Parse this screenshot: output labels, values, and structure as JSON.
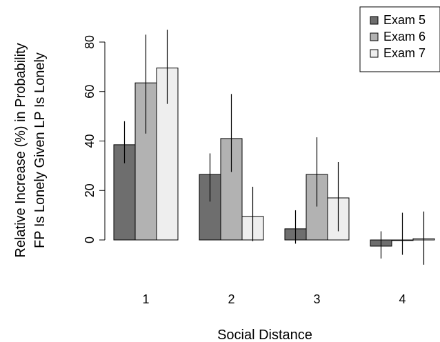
{
  "chart_data": {
    "type": "bar",
    "categories": [
      "1",
      "2",
      "3",
      "4"
    ],
    "series": [
      {
        "name": "Exam 5",
        "color": "#6e6e6e",
        "values": [
          38.5,
          26.5,
          4.5,
          -2.5
        ],
        "err_low": [
          31,
          15.5,
          -1.5,
          -7.5
        ],
        "err_high": [
          48,
          35,
          12,
          3.5
        ]
      },
      {
        "name": "Exam 6",
        "color": "#b2b2b2",
        "values": [
          63.5,
          41,
          26.5,
          0
        ],
        "err_low": [
          43,
          27.5,
          13.5,
          -6
        ],
        "err_high": [
          83,
          59,
          41.5,
          11
        ]
      },
      {
        "name": "Exam 7",
        "color": "#eeeeee",
        "values": [
          69.5,
          9.5,
          17,
          0.5
        ],
        "err_low": [
          55,
          -0.5,
          3.5,
          -10
        ],
        "err_high": [
          85,
          21.5,
          31.5,
          11.5
        ]
      }
    ],
    "xlabel": "Social Distance",
    "ylabel_line1": "Relative Increase (%) in Probability",
    "ylabel_line2": "FP Is Lonely Given LP Is Lonely",
    "yticks": [
      0,
      20,
      40,
      60,
      80
    ],
    "ylim": [
      -10,
      85
    ],
    "legend_position": "top-right",
    "grid": false
  }
}
